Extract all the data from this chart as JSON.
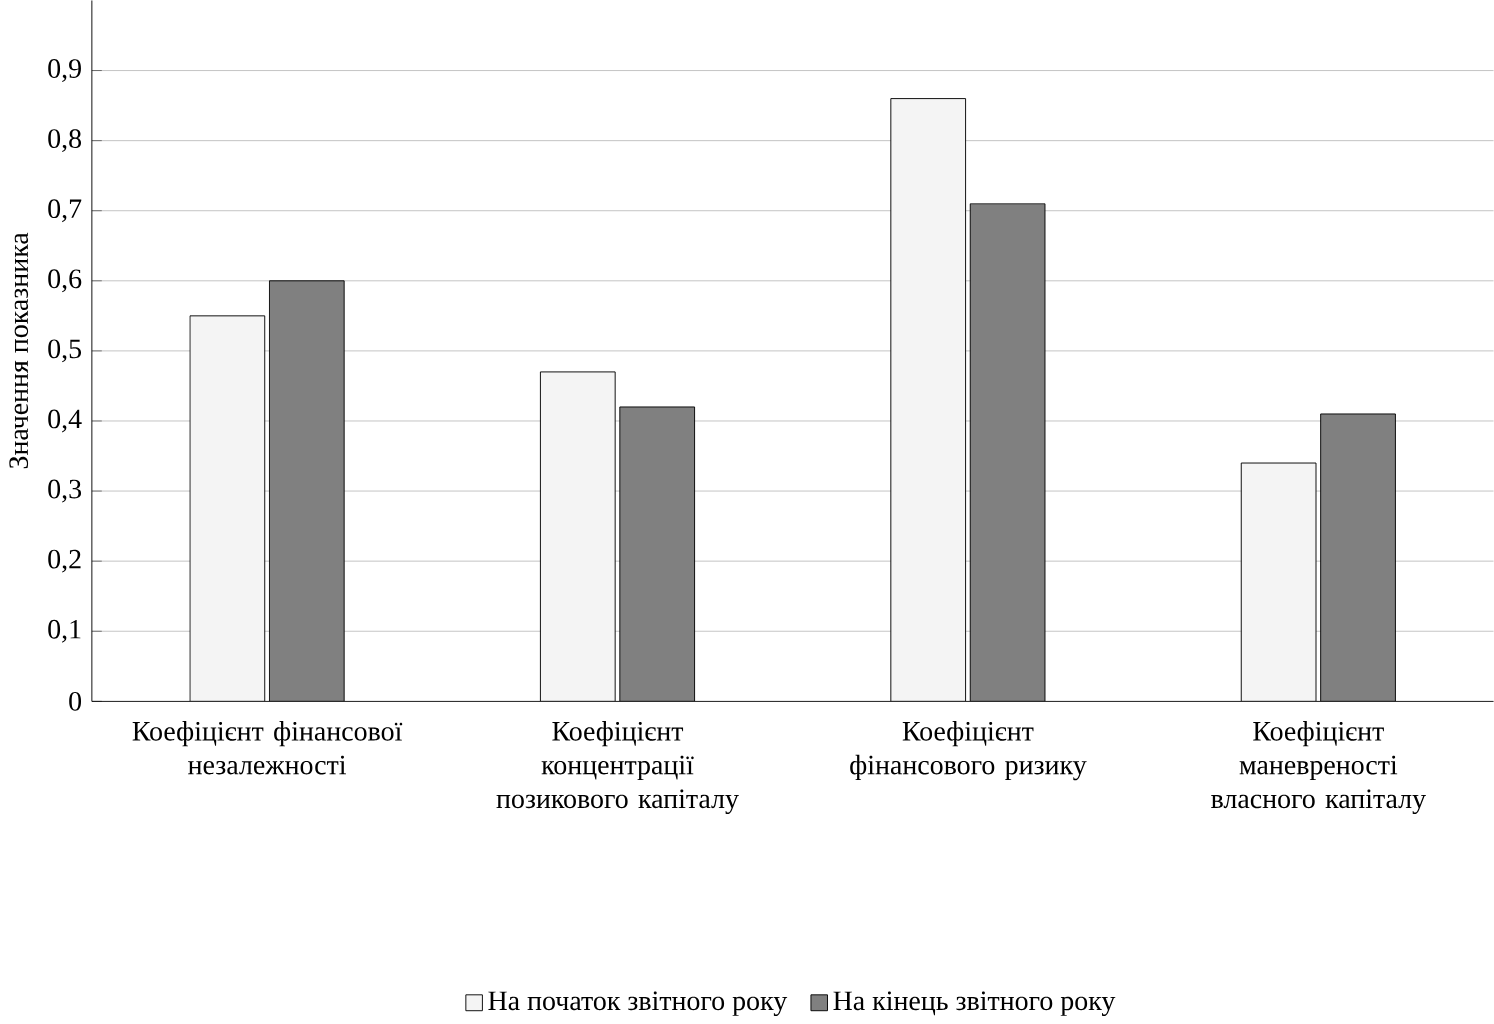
{
  "chart_data": {
    "type": "bar",
    "ylabel": "Значення показника",
    "categories": [
      "Коефіцієнт фінансової незалежності",
      "Коефіцієнт концентрації позикового капіталу",
      "Коефіцієнт фінансового ризику",
      "Коефіцієнт маневреності власного капіталу"
    ],
    "series": [
      {
        "name": "На початок звітного року",
        "color": "#f4f4f4",
        "values": [
          0.55,
          0.47,
          0.86,
          0.34
        ]
      },
      {
        "name": "На кінець звітного року",
        "color": "#808080",
        "values": [
          0.6,
          0.42,
          0.71,
          0.41
        ]
      }
    ],
    "ylim": [
      0,
      1
    ],
    "yticks": [
      0,
      {
        "value": 0.1,
        "label": "0,1"
      },
      {
        "value": 0.2,
        "label": "0,2"
      },
      {
        "value": 0.3,
        "label": "0,3"
      },
      {
        "value": 0.4,
        "label": "0,4"
      },
      {
        "value": 0.5,
        "label": "0,5"
      },
      {
        "value": 0.6,
        "label": "0,6"
      },
      {
        "value": 0.7,
        "label": "0,7"
      },
      {
        "value": 0.8,
        "label": "0,8"
      },
      {
        "value": 0.9,
        "label": "0,9"
      }
    ],
    "grid": "y",
    "legend": "bottom"
  }
}
